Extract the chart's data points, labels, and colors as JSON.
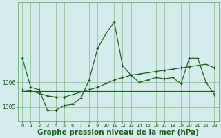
{
  "title": "Graphe pression niveau de la mer (hPa)",
  "x_hours": [
    0,
    1,
    2,
    3,
    4,
    5,
    6,
    7,
    8,
    9,
    10,
    11,
    12,
    13,
    14,
    15,
    16,
    17,
    18,
    19,
    20,
    21,
    22,
    23
  ],
  "series_volatile": [
    1007.0,
    1005.8,
    1005.7,
    1004.85,
    1004.85,
    1005.05,
    1005.1,
    1005.35,
    1006.1,
    1007.4,
    1008.0,
    1008.5,
    1006.7,
    1006.3,
    1006.0,
    1006.1,
    1006.2,
    1006.15,
    1006.2,
    1005.95,
    1007.0,
    1007.0,
    1006.0,
    1005.5
  ],
  "series_trend": [
    1005.7,
    1005.65,
    1005.55,
    1005.45,
    1005.4,
    1005.4,
    1005.5,
    1005.6,
    1005.7,
    1005.8,
    1005.95,
    1006.1,
    1006.2,
    1006.3,
    1006.35,
    1006.4,
    1006.45,
    1006.5,
    1006.55,
    1006.6,
    1006.65,
    1006.7,
    1006.75,
    1006.6
  ],
  "series_flat": [
    1005.65,
    1005.65,
    1005.65,
    1005.65,
    1005.65,
    1005.65,
    1005.65,
    1005.65,
    1005.65,
    1005.65,
    1005.65,
    1005.65,
    1005.65,
    1005.65,
    1005.65,
    1005.65,
    1005.65,
    1005.65,
    1005.65,
    1005.65,
    1005.65,
    1005.65,
    1005.65,
    1005.65
  ],
  "bg_color": "#d4ecec",
  "grid_color": "#5a9e5a",
  "line_color": "#1a5c1a",
  "ylim_min": 1004.4,
  "ylim_max": 1009.3,
  "ytick_vals": [
    1005,
    1006
  ],
  "ytick_labels": [
    "1005",
    "1006"
  ],
  "title_fontsize": 7.5,
  "tick_fontsize": 5.5
}
